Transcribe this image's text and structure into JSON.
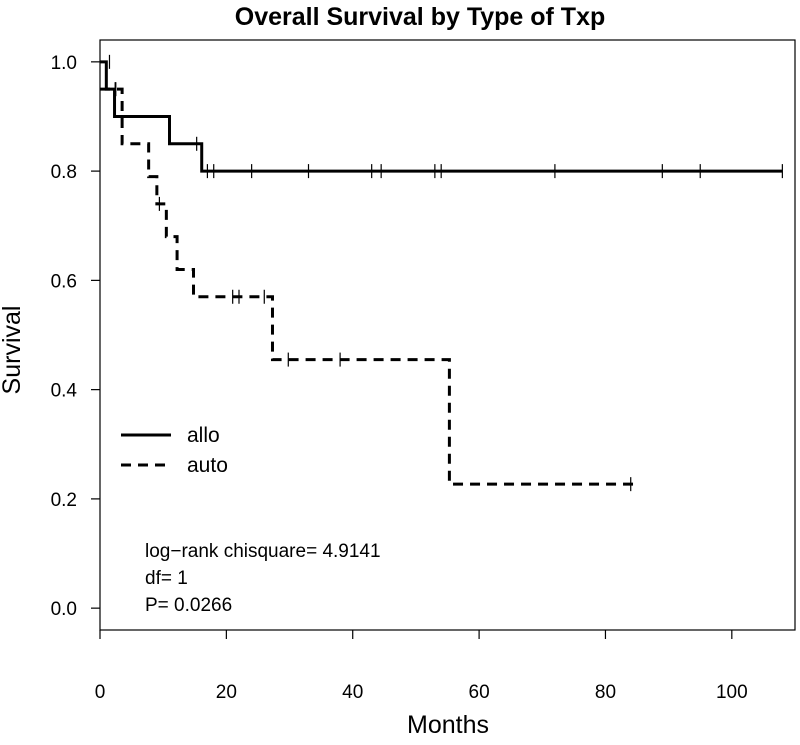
{
  "chart_data": {
    "type": "line",
    "title": "Overall Survival by Type of Txp",
    "xlabel": "Months",
    "ylabel": "Survival",
    "xlim": [
      0,
      110
    ],
    "ylim": [
      -0.04,
      1.04
    ],
    "xticks": [
      0,
      20,
      40,
      60,
      80,
      100
    ],
    "yticks": [
      0.0,
      0.2,
      0.4,
      0.6,
      0.8,
      1.0
    ],
    "xtick_labels": [
      "0",
      "20",
      "40",
      "60",
      "80",
      "100"
    ],
    "ytick_labels": [
      "0.0",
      "0.2",
      "0.4",
      "0.6",
      "0.8",
      "1.0"
    ],
    "grid": false,
    "legend_position": "left",
    "series": [
      {
        "name": "allo",
        "style": "solid",
        "steps": [
          [
            0,
            1.0
          ],
          [
            1.0,
            0.95
          ],
          [
            2.3,
            0.9
          ],
          [
            11.0,
            0.85
          ],
          [
            16.1,
            0.8
          ]
        ],
        "end_x": 108,
        "censor_marks": [
          [
            1.5,
            1.0
          ],
          [
            2.5,
            0.95
          ],
          [
            15.3,
            0.85
          ],
          [
            17.0,
            0.8
          ],
          [
            18.0,
            0.8
          ],
          [
            24.0,
            0.8
          ],
          [
            33.0,
            0.8
          ],
          [
            43.0,
            0.8
          ],
          [
            44.5,
            0.8
          ],
          [
            53.0,
            0.8
          ],
          [
            54.0,
            0.8
          ],
          [
            72.0,
            0.8
          ],
          [
            89.0,
            0.8
          ],
          [
            95.0,
            0.8
          ],
          [
            108.0,
            0.8
          ]
        ]
      },
      {
        "name": "auto",
        "style": "dashed",
        "steps": [
          [
            0,
            0.95
          ],
          [
            3.5,
            0.85
          ],
          [
            7.7,
            0.79
          ],
          [
            9.0,
            0.74
          ],
          [
            10.5,
            0.68
          ],
          [
            12.2,
            0.62
          ],
          [
            14.8,
            0.57
          ],
          [
            27.3,
            0.455
          ],
          [
            55.3,
            0.227
          ]
        ],
        "end_x": 84.5,
        "censor_marks": [
          [
            2.4,
            0.95
          ],
          [
            9.4,
            0.74
          ],
          [
            21.0,
            0.57
          ],
          [
            22.0,
            0.57
          ],
          [
            26.0,
            0.57
          ],
          [
            29.8,
            0.455
          ],
          [
            38.0,
            0.455
          ],
          [
            84.0,
            0.227
          ]
        ]
      }
    ],
    "annotations": [
      "log−rank chisquare= 4.9141",
      "df= 1",
      "P= 0.0266"
    ]
  }
}
